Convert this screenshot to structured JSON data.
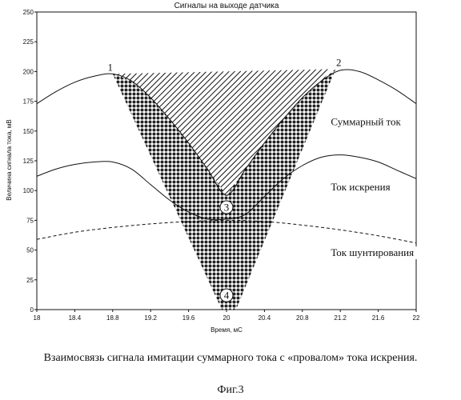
{
  "chart_data": {
    "type": "line",
    "title": "Сигналы на выходе датчика",
    "xlabel": "Время, мС",
    "ylabel": "Величина сигнала тока, мВ",
    "xlim": [
      18,
      22
    ],
    "ylim": [
      0,
      250
    ],
    "xticks": [
      "18",
      "18.4",
      "18.8",
      "19.2",
      "19.6",
      "20",
      "20.4",
      "20.8",
      "21.2",
      "21.6",
      "22"
    ],
    "yticks": [
      "0",
      "25",
      "50",
      "75",
      "100",
      "125",
      "150",
      "175",
      "200",
      "225",
      "250"
    ],
    "grid": false,
    "series": [
      {
        "name": "Суммарный ток",
        "style": "solid",
        "x": [
          18.0,
          18.2,
          18.4,
          18.6,
          18.8,
          19.0,
          19.2,
          19.4,
          19.6,
          19.8,
          20.0,
          20.2,
          20.4,
          20.6,
          20.8,
          21.0,
          21.2,
          21.4,
          21.6,
          21.8,
          22.0
        ],
        "y": [
          173,
          183,
          191,
          196,
          198,
          192,
          178,
          160,
          140,
          118,
          96,
          118,
          140,
          160,
          178,
          192,
          201,
          200,
          193,
          184,
          173
        ]
      },
      {
        "name": "Ток искрения",
        "style": "solid",
        "x": [
          18.0,
          18.2,
          18.4,
          18.6,
          18.8,
          19.0,
          19.2,
          19.4,
          19.6,
          19.8,
          20.0,
          20.2,
          20.4,
          20.6,
          20.8,
          21.0,
          21.2,
          21.4,
          21.6,
          21.8,
          22.0
        ],
        "y": [
          112,
          118,
          122,
          124,
          124,
          118,
          105,
          92,
          82,
          76,
          76,
          80,
          95,
          110,
          121,
          128,
          130,
          128,
          124,
          117,
          110
        ]
      },
      {
        "name": "Ток шунтирования",
        "style": "dashed",
        "x": [
          18.0,
          18.4,
          18.8,
          19.2,
          19.6,
          20.0,
          20.4,
          20.8,
          21.2,
          21.6,
          22.0
        ],
        "y": [
          59,
          65,
          69,
          72,
          74,
          75,
          74,
          71,
          67,
          62,
          56
        ]
      }
    ],
    "regions": [
      {
        "kind": "hatched",
        "polygon": [
          [
            18.8,
            198
          ],
          [
            21.1,
            202
          ],
          [
            20.0,
            76
          ]
        ]
      },
      {
        "kind": "dotted",
        "polygon_outer": [
          [
            18.8,
            198
          ],
          [
            19.0,
            192
          ],
          [
            19.2,
            178
          ],
          [
            19.4,
            160
          ],
          [
            19.6,
            140
          ],
          [
            19.8,
            118
          ],
          [
            20.0,
            96
          ],
          [
            20.2,
            118
          ],
          [
            20.4,
            140
          ],
          [
            20.6,
            160
          ],
          [
            20.8,
            178
          ],
          [
            21.0,
            192
          ],
          [
            21.15,
            202
          ],
          [
            20.1,
            0
          ],
          [
            19.95,
            0
          ]
        ]
      }
    ],
    "markers": [
      {
        "label": "1",
        "x": 18.8,
        "y": 198
      },
      {
        "label": "2",
        "x": 21.15,
        "y": 202
      },
      {
        "label": "3",
        "x": 20.0,
        "y": 86
      },
      {
        "label": "4",
        "x": 20.0,
        "y": 12
      }
    ],
    "annotations": [
      {
        "text": "Суммарный ток",
        "x": 21.1,
        "y": 155
      },
      {
        "text": "Ток искрения",
        "x": 21.1,
        "y": 100
      },
      {
        "text": "Ток шунтирования",
        "x": 21.1,
        "y": 45
      }
    ]
  },
  "caption": {
    "main": "Взаимосвязь сигнала имитации суммарного тока с «провалом» тока искрения.",
    "figure": "Фиг.3"
  }
}
